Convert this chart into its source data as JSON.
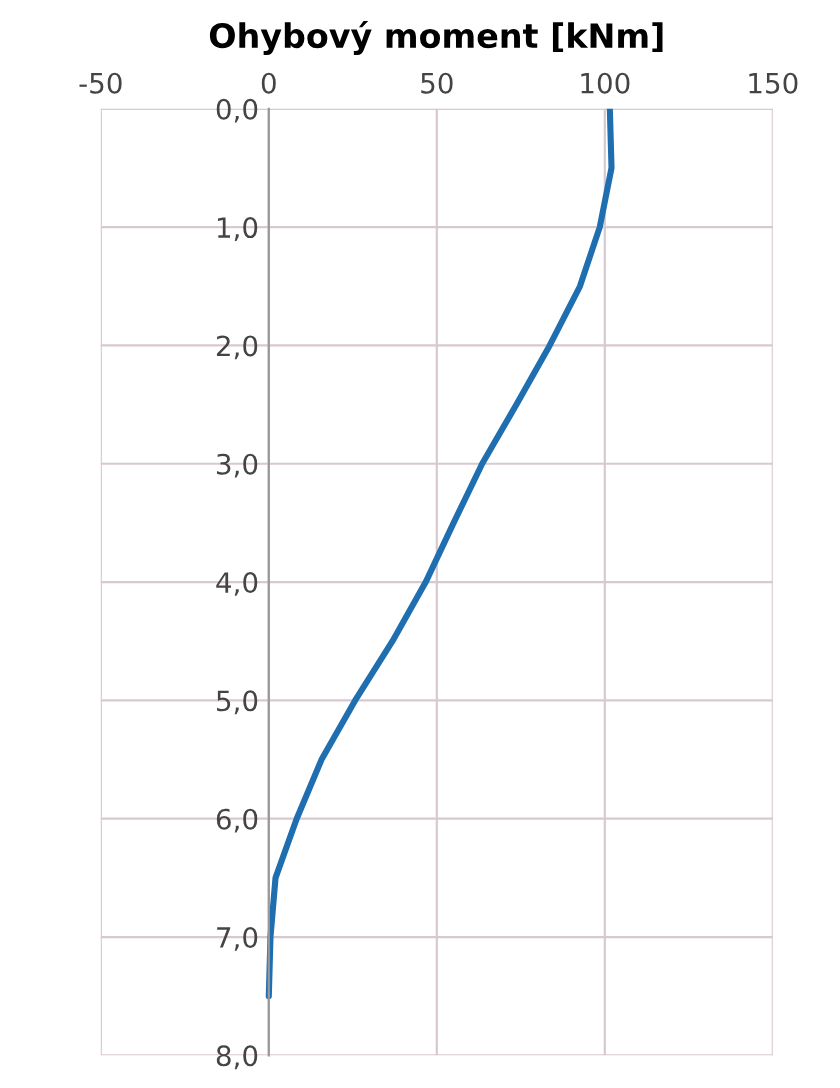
{
  "chart_data": {
    "type": "line",
    "title": "Ohybový moment [kNm]",
    "series": [
      {
        "color": "#1f6fb0",
        "x": [
          101.5,
          102,
          98.5,
          92.6,
          83.6,
          73.7,
          63.5,
          55,
          46.7,
          36.8,
          25.7,
          15.7,
          8.3,
          2,
          0.5,
          0
        ],
        "values": [
          0,
          0.5,
          1,
          1.5,
          2,
          2.5,
          3,
          3.5,
          4,
          4.5,
          5,
          5.5,
          6,
          6.5,
          7,
          7.5
        ]
      }
    ],
    "xlim": [
      -50,
      150
    ],
    "xticks": [
      -50,
      0,
      50,
      100,
      150
    ],
    "ylim": [
      8,
      0
    ],
    "yticks": [
      {
        "value": 0,
        "label": "0,0"
      },
      {
        "value": 1,
        "label": "1,0"
      },
      {
        "value": 2,
        "label": "2,0"
      },
      {
        "value": 3,
        "label": "3,0"
      },
      {
        "value": 4,
        "label": "4,0"
      },
      {
        "value": 5,
        "label": "5,0"
      },
      {
        "value": 6,
        "label": "6,0"
      },
      {
        "value": 7,
        "label": "7,0"
      },
      {
        "value": 8,
        "label": "8,0"
      }
    ],
    "grid": true,
    "marker": "none",
    "line_style": "solid"
  }
}
